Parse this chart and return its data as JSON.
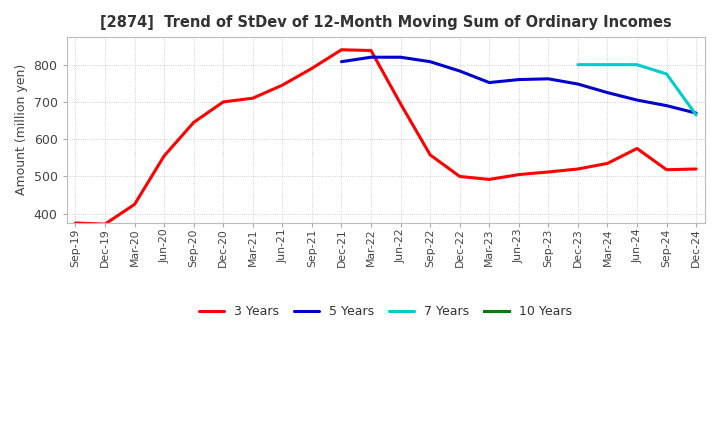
{
  "title": "[2874]  Trend of StDev of 12-Month Moving Sum of Ordinary Incomes",
  "ylabel": "Amount (million yen)",
  "ylim": [
    375,
    875
  ],
  "yticks": [
    400,
    500,
    600,
    700,
    800
  ],
  "legend_labels": [
    "3 Years",
    "5 Years",
    "7 Years",
    "10 Years"
  ],
  "legend_colors": [
    "#ff0000",
    "#0000cd",
    "#00cccc",
    "#008000"
  ],
  "background_color": "#ffffff",
  "grid_color": "#bbbbbb",
  "x_labels": [
    "Sep-19",
    "Dec-19",
    "Mar-20",
    "Jun-20",
    "Sep-20",
    "Dec-20",
    "Mar-21",
    "Jun-21",
    "Sep-21",
    "Dec-21",
    "Mar-22",
    "Jun-22",
    "Sep-22",
    "Dec-22",
    "Mar-23",
    "Jun-23",
    "Sep-23",
    "Dec-23",
    "Mar-24",
    "Jun-24",
    "Sep-24",
    "Dec-24"
  ],
  "series_3y": [
    375,
    372,
    425,
    555,
    645,
    700,
    710,
    745,
    790,
    840,
    838,
    695,
    558,
    500,
    492,
    505,
    512,
    520,
    535,
    575,
    518,
    520
  ],
  "series_5y": [
    null,
    null,
    null,
    null,
    null,
    null,
    null,
    null,
    null,
    808,
    820,
    820,
    808,
    783,
    752,
    760,
    762,
    748,
    725,
    705,
    690,
    670
  ],
  "series_7y": [
    null,
    null,
    null,
    null,
    null,
    null,
    null,
    null,
    null,
    null,
    null,
    null,
    null,
    null,
    null,
    null,
    null,
    800,
    800,
    800,
    775,
    665
  ],
  "series_10y": []
}
